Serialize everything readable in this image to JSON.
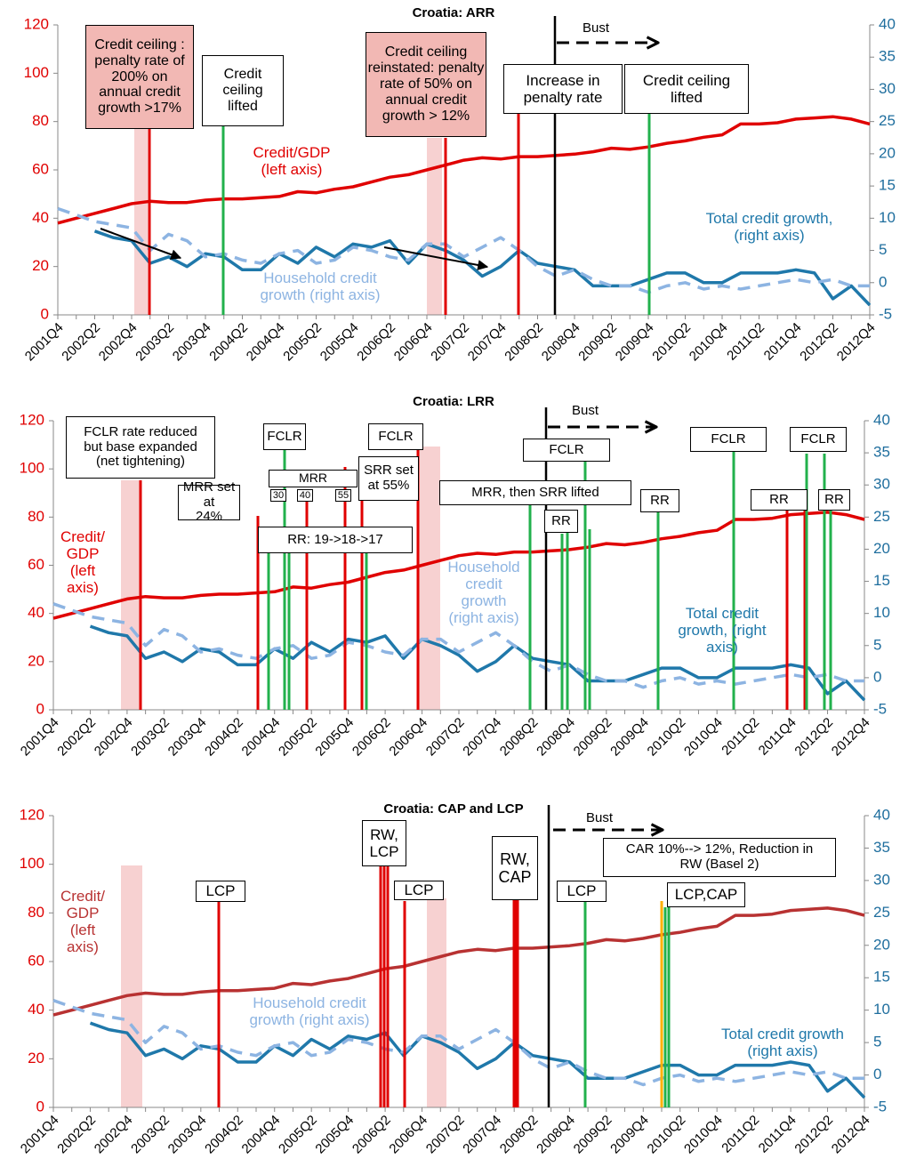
{
  "chart_data": [
    {
      "type": "line",
      "title": "Croatia: ARR",
      "categories": [
        "2001Q4",
        null,
        "2002Q2",
        null,
        "2002Q4",
        null,
        "2003Q2",
        null,
        "2003Q4",
        null,
        "2004Q2",
        null,
        "2004Q4",
        null,
        "2005Q2",
        null,
        "2005Q4",
        null,
        "2006Q2",
        null,
        "2006Q4",
        null,
        "2007Q2",
        null,
        "2007Q4",
        null,
        "2008Q2",
        null,
        "2008Q4",
        null,
        "2009Q2",
        null,
        "2009Q4",
        null,
        "2010Q2",
        null,
        "2010Q4",
        null,
        "2011Q2",
        null,
        "2011Q4",
        null,
        "2012Q2",
        null,
        "2012Q4"
      ],
      "series": [
        {
          "name": "Credit/GDP\n(left axis)",
          "color": "#e00000",
          "axis": "y",
          "dashed": false,
          "values": [
            38,
            40,
            42,
            44,
            46,
            47,
            46.5,
            46.5,
            47.5,
            48,
            48,
            48.5,
            49,
            51,
            50.5,
            52,
            53,
            55,
            57,
            58,
            60,
            62,
            64,
            65,
            64.5,
            65.5,
            65.5,
            66,
            66.5,
            67.5,
            69,
            68.5,
            69.5,
            71,
            72,
            73.5,
            74.5,
            79,
            79,
            79.5,
            81,
            81.5,
            82,
            81,
            79
          ]
        },
        {
          "name": "Total credit growth,\n(right axis)",
          "color": "#1f78aa",
          "axis": "y2",
          "dashed": false,
          "values": [
            null,
            null,
            8,
            7,
            6.5,
            3,
            4,
            2.5,
            4.5,
            4,
            2,
            2,
            4.5,
            3,
            5.5,
            4,
            6,
            5.5,
            6.5,
            3,
            6,
            5,
            3.5,
            1,
            2.5,
            5,
            3,
            2.5,
            2,
            -0.5,
            -0.5,
            -0.5,
            0.5,
            1.5,
            1.5,
            0,
            0,
            1.5,
            1.5,
            1.5,
            2,
            1.5,
            -2.5,
            -0.5,
            -3.5
          ]
        },
        {
          "name": "Household credit\ngrowth (right axis)",
          "color": "#8db4e2",
          "axis": "y2",
          "dashed": true,
          "values": [
            11.5,
            10.5,
            9.5,
            9,
            8.5,
            5,
            7.5,
            6.5,
            4,
            4.5,
            3.5,
            3,
            4.5,
            5,
            3,
            3.5,
            5.5,
            5,
            4,
            3.5,
            6,
            6,
            4,
            5.5,
            7,
            5,
            2.5,
            1,
            2,
            0.5,
            -0.5,
            -0.5,
            -1.5,
            -0.5,
            0,
            -1,
            -0.5,
            -1,
            -0.5,
            0,
            0.5,
            0,
            0.5,
            -0.5,
            -0.5
          ]
        }
      ],
      "ylim": [
        0,
        120
      ],
      "yticks": [
        0,
        20,
        40,
        60,
        80,
        100,
        120
      ],
      "ytick_color": "#e00000",
      "y2lim": [
        -5,
        40
      ],
      "y2ticks": [
        -5,
        0,
        5,
        10,
        15,
        20,
        25,
        30,
        35,
        40
      ],
      "y2tick_color": "#1f6e9e",
      "annotations": [
        "Credit ceiling :\npenalty rate of\n200%  on\nannual credit\ngrowth >17%",
        "Credit\nceiling\nlifted",
        "Credit ceiling\nreinstated: penalty\nrate of 50%  on\nannual credit\ngrowth > 12%",
        "Increase in\npenalty rate",
        "Credit ceiling\nlifted",
        "Bust"
      ]
    },
    {
      "type": "line",
      "title": "Croatia: LRR",
      "categories": [
        "2001Q4",
        null,
        "2002Q2",
        null,
        "2002Q4",
        null,
        "2003Q2",
        null,
        "2003Q4",
        null,
        "2004Q2",
        null,
        "2004Q4",
        null,
        "2005Q2",
        null,
        "2005Q4",
        null,
        "2006Q2",
        null,
        "2006Q4",
        null,
        "2007Q2",
        null,
        "2007Q4",
        null,
        "2008Q2",
        null,
        "2008Q4",
        null,
        "2009Q2",
        null,
        "2009Q4",
        null,
        "2010Q2",
        null,
        "2010Q4",
        null,
        "2011Q2",
        null,
        "2011Q4",
        null,
        "2012Q2",
        null,
        "2012Q4"
      ],
      "series": [
        {
          "name": "Credit/\nGDP\n(left\naxis)",
          "color": "#e00000",
          "axis": "y",
          "dashed": false,
          "values": [
            38,
            40,
            42,
            44,
            46,
            47,
            46.5,
            46.5,
            47.5,
            48,
            48,
            48.5,
            49,
            51,
            50.5,
            52,
            53,
            55,
            57,
            58,
            60,
            62,
            64,
            65,
            64.5,
            65.5,
            65.5,
            66,
            66.5,
            67.5,
            69,
            68.5,
            69.5,
            71,
            72,
            73.5,
            74.5,
            79,
            79,
            79.5,
            81,
            81.5,
            82,
            81,
            79
          ]
        },
        {
          "name": "Total  credit\ngrowth, (right\naxis)",
          "color": "#1f78aa",
          "axis": "y2",
          "dashed": false,
          "values": [
            null,
            null,
            8,
            7,
            6.5,
            3,
            4,
            2.5,
            4.5,
            4,
            2,
            2,
            4.5,
            3,
            5.5,
            4,
            6,
            5.5,
            6.5,
            3,
            6,
            5,
            3.5,
            1,
            2.5,
            5,
            3,
            2.5,
            2,
            -0.5,
            -0.5,
            -0.5,
            0.5,
            1.5,
            1.5,
            0,
            0,
            1.5,
            1.5,
            1.5,
            2,
            1.5,
            -2.5,
            -0.5,
            -3.5
          ]
        },
        {
          "name": "Household\ncredit\ngrowth\n(right axis)",
          "color": "#8db4e2",
          "axis": "y2",
          "dashed": true,
          "values": [
            11.5,
            10.5,
            9.5,
            9,
            8.5,
            5,
            7.5,
            6.5,
            4,
            4.5,
            3.5,
            3,
            4.5,
            5,
            3,
            3.5,
            5.5,
            5,
            4,
            3.5,
            6,
            6,
            4,
            5.5,
            7,
            5,
            2.5,
            1,
            2,
            0.5,
            -0.5,
            -0.5,
            -1.5,
            -0.5,
            0,
            -1,
            -0.5,
            -1,
            -0.5,
            0,
            0.5,
            0,
            0.5,
            -0.5,
            -0.5
          ]
        }
      ],
      "ylim": [
        0,
        120
      ],
      "yticks": [
        0,
        20,
        40,
        60,
        80,
        100,
        120
      ],
      "ytick_color": "#e00000",
      "y2lim": [
        -5,
        40
      ],
      "y2ticks": [
        -5,
        0,
        5,
        10,
        15,
        20,
        25,
        30,
        35,
        40
      ],
      "y2tick_color": "#1f6e9e",
      "annotations": [
        "FCLR rate reduced\nbut base expanded\n(net tightening)",
        "FCLR",
        "MRR set at\n24%",
        "MRR",
        "30",
        "40",
        "55",
        "SRR set\nat 55%",
        "FCLR",
        "RR: 19->18->17",
        "MRR, then SRR lifted",
        "FCLR",
        "Bust",
        "RR",
        "RR",
        "FCLR",
        "RR",
        "FCLR",
        "RR"
      ]
    },
    {
      "type": "line",
      "title": "Croatia: CAP and LCP",
      "categories": [
        "2001Q4",
        null,
        "2002Q2",
        null,
        "2002Q4",
        null,
        "2003Q2",
        null,
        "2003Q4",
        null,
        "2004Q2",
        null,
        "2004Q4",
        null,
        "2005Q2",
        null,
        "2005Q4",
        null,
        "2006Q2",
        null,
        "2006Q4",
        null,
        "2007Q2",
        null,
        "2007Q4",
        null,
        "2008Q2",
        null,
        "2008Q4",
        null,
        "2009Q2",
        null,
        "2009Q4",
        null,
        "2010Q2",
        null,
        "2010Q4",
        null,
        "2011Q2",
        null,
        "2011Q4",
        null,
        "2012Q2",
        null,
        "2012Q4"
      ],
      "series": [
        {
          "name": "Credit/\nGDP\n(left\naxis)",
          "color": "#b83232",
          "axis": "y",
          "dashed": false,
          "values": [
            38,
            40,
            42,
            44,
            46,
            47,
            46.5,
            46.5,
            47.5,
            48,
            48,
            48.5,
            49,
            51,
            50.5,
            52,
            53,
            55,
            57,
            58,
            60,
            62,
            64,
            65,
            64.5,
            65.5,
            65.5,
            66,
            66.5,
            67.5,
            69,
            68.5,
            69.5,
            71,
            72,
            73.5,
            74.5,
            79,
            79,
            79.5,
            81,
            81.5,
            82,
            81,
            79
          ]
        },
        {
          "name": "Total credit growth\n(right axis)",
          "color": "#1f78aa",
          "axis": "y2",
          "dashed": false,
          "values": [
            null,
            null,
            8,
            7,
            6.5,
            3,
            4,
            2.5,
            4.5,
            4,
            2,
            2,
            4.5,
            3,
            5.5,
            4,
            6,
            5.5,
            6.5,
            3,
            6,
            5,
            3.5,
            1,
            2.5,
            5,
            3,
            2.5,
            2,
            -0.5,
            -0.5,
            -0.5,
            0.5,
            1.5,
            1.5,
            0,
            0,
            1.5,
            1.5,
            1.5,
            2,
            1.5,
            -2.5,
            -0.5,
            -3.5
          ]
        },
        {
          "name": "Household credit\ngrowth (right axis)",
          "color": "#8db4e2",
          "axis": "y2",
          "dashed": true,
          "values": [
            11.5,
            10.5,
            9.5,
            9,
            8.5,
            5,
            7.5,
            6.5,
            4,
            4.5,
            3.5,
            3,
            4.5,
            5,
            3,
            3.5,
            5.5,
            5,
            4,
            3.5,
            6,
            6,
            4,
            5.5,
            7,
            5,
            2.5,
            1,
            2,
            0.5,
            -0.5,
            -0.5,
            -1.5,
            -0.5,
            0,
            -1,
            -0.5,
            -1,
            -0.5,
            0,
            0.5,
            0,
            0.5,
            -0.5,
            -0.5
          ]
        }
      ],
      "ylim": [
        0,
        120
      ],
      "yticks": [
        0,
        20,
        40,
        60,
        80,
        100,
        120
      ],
      "ytick_color": "#e00000",
      "y2lim": [
        -5,
        40
      ],
      "y2ticks": [
        -5,
        0,
        5,
        10,
        15,
        20,
        25,
        30,
        35,
        40
      ],
      "y2tick_color": "#1f6e9e",
      "annotations": [
        "RW,\nLCP",
        "LCP",
        "LCP",
        "RW,\nCAP",
        "LCP",
        "Bust",
        "CAR 10%--> 12%, Reduction in\nRW (Basel 2)",
        "LCP,CAP"
      ]
    }
  ]
}
